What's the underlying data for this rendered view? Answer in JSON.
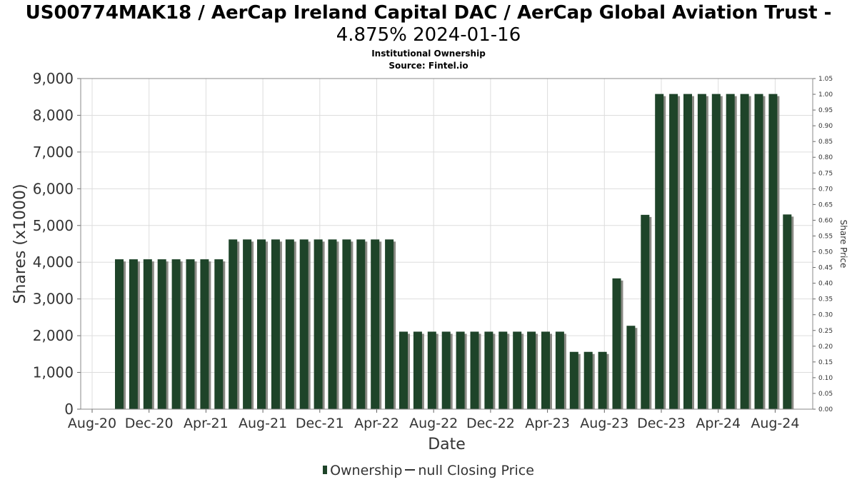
{
  "header": {
    "title_line1": "US00774MAK18 / AerCap Ireland Capital DAC / AerCap Global Aviation Trust -",
    "title_line2": "4.875% 2024-01-16",
    "subtitle": "Institutional Ownership",
    "source": "Source: Fintel.io"
  },
  "legend": {
    "ownership": "Ownership",
    "price": "null Closing Price"
  },
  "chart_data": {
    "type": "bar",
    "xlabel": "Date",
    "ylabel": "Shares (x1000)",
    "y2label": "Share Price",
    "ylim": [
      0,
      9000
    ],
    "y2lim": [
      0,
      1.05
    ],
    "grid": true,
    "legend_position": "bottom",
    "colors": {
      "bar": "#1e4429",
      "shadow": "#8a8a84",
      "grid": "#dddddd"
    },
    "yticks": [
      "0",
      "1,000",
      "2,000",
      "3,000",
      "4,000",
      "5,000",
      "6,000",
      "7,000",
      "8,000",
      "9,000"
    ],
    "y2ticks": [
      "0.00",
      "0.05",
      "0.10",
      "0.15",
      "0.20",
      "0.25",
      "0.30",
      "0.35",
      "0.40",
      "0.45",
      "0.50",
      "0.55",
      "0.60",
      "0.65",
      "0.70",
      "0.75",
      "0.80",
      "0.85",
      "0.90",
      "0.95",
      "1.00",
      "1.05"
    ],
    "xticks": [
      "Aug-20",
      "Dec-20",
      "Apr-21",
      "Aug-21",
      "Dec-21",
      "Apr-22",
      "Aug-22",
      "Dec-22",
      "Apr-23",
      "Aug-23",
      "Dec-23",
      "Apr-24",
      "Aug-24"
    ],
    "categories": [
      "Oct-20",
      "Nov-20",
      "Dec-20",
      "Jan-21",
      "Feb-21",
      "Mar-21",
      "Apr-21",
      "May-21",
      "Jun-21",
      "Jul-21",
      "Aug-21",
      "Sep-21",
      "Oct-21",
      "Nov-21",
      "Dec-21",
      "Jan-22",
      "Feb-22",
      "Mar-22",
      "Apr-22",
      "May-22",
      "Jun-22",
      "Jul-22",
      "Aug-22",
      "Sep-22",
      "Oct-22",
      "Nov-22",
      "Dec-22",
      "Jan-23",
      "Feb-23",
      "Mar-23",
      "Apr-23",
      "May-23",
      "Jun-23",
      "Jul-23",
      "Aug-23",
      "Sep-23",
      "Oct-23",
      "Nov-23",
      "Dec-23",
      "Jan-24",
      "Feb-24",
      "Mar-24",
      "Apr-24",
      "May-24",
      "Jun-24",
      "Jul-24",
      "Aug-24",
      "Sep-24"
    ],
    "series": [
      {
        "name": "Ownership",
        "values": [
          4080,
          4080,
          4080,
          4080,
          4080,
          4080,
          4080,
          4080,
          4620,
          4620,
          4620,
          4620,
          4620,
          4620,
          4620,
          4620,
          4620,
          4620,
          4620,
          4620,
          2110,
          2110,
          2110,
          2110,
          2110,
          2110,
          2110,
          2110,
          2110,
          2110,
          2110,
          2110,
          1560,
          1560,
          1560,
          3560,
          2270,
          5290,
          8580,
          8580,
          8580,
          8580,
          8580,
          8580,
          8580,
          8580,
          8580,
          5300
        ]
      }
    ]
  }
}
